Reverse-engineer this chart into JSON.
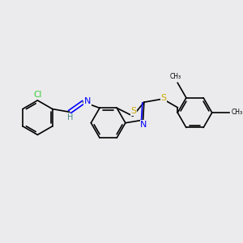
{
  "bg_color": "#ebebed",
  "bond_color": "#000000",
  "cl_color": "#33cc33",
  "n_color": "#0000ff",
  "s_color": "#ccaa00",
  "h_color": "#448888",
  "atoms": {
    "Cl": {
      "color": "#33cc33"
    },
    "N": {
      "color": "#0000ff"
    },
    "S": {
      "color": "#ccaa00"
    },
    "H": {
      "color": "#448888"
    }
  },
  "bond_width": 1.2,
  "font_size": 7.5
}
